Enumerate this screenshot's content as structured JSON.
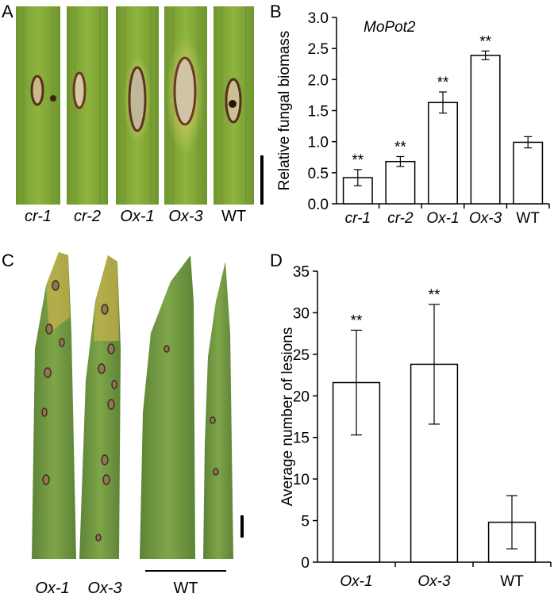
{
  "panels": {
    "A": {
      "letter": "A",
      "leaf_labels": [
        "cr-1",
        "cr-2",
        "Ox-1",
        "Ox-3",
        "WT"
      ]
    },
    "B": {
      "letter": "B"
    },
    "C": {
      "letter": "C",
      "leaf_labels": [
        "Ox-1",
        "Ox-3"
      ],
      "group_label": "WT"
    },
    "D": {
      "letter": "D"
    }
  },
  "colors": {
    "leaf_green": "#7ea235",
    "leaf_dark": "#4f7a2a",
    "lesion_brown": "#6b3a22",
    "lesion_yellow": "#d9c25a",
    "leaf_C_green": "#6f9440"
  },
  "chart_data": [
    {
      "type": "bar",
      "panel": "B",
      "title": "MoPot2",
      "ylabel": "Relative fungal biomass",
      "xlabel": "",
      "categories": [
        "cr-1",
        "cr-2",
        "Ox-1",
        "Ox-3",
        "WT"
      ],
      "italic_categories": [
        true,
        true,
        true,
        true,
        false
      ],
      "values": [
        0.42,
        0.68,
        1.63,
        2.39,
        0.99
      ],
      "errors": [
        0.13,
        0.08,
        0.17,
        0.07,
        0.09
      ],
      "significance": [
        "**",
        "**",
        "**",
        "**",
        ""
      ],
      "ylim": [
        0.0,
        3.0
      ],
      "yticks": [
        "0.0",
        "0.5",
        "1.0",
        "1.5",
        "2.0",
        "2.5",
        "3.0"
      ]
    },
    {
      "type": "bar",
      "panel": "D",
      "ylabel": "Average number of lesions",
      "xlabel": "",
      "categories": [
        "Ox-1",
        "Ox-3",
        "WT"
      ],
      "italic_categories": [
        true,
        true,
        false
      ],
      "values": [
        21.6,
        23.8,
        4.8
      ],
      "errors": [
        6.3,
        7.2,
        3.2
      ],
      "significance": [
        "**",
        "**",
        ""
      ],
      "ylim": [
        0,
        35
      ],
      "yticks": [
        "0",
        "5",
        "10",
        "15",
        "20",
        "25",
        "30",
        "35"
      ]
    }
  ]
}
